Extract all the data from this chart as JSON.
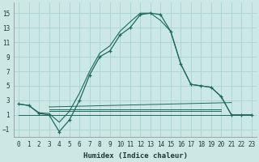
{
  "xlabel": "Humidex (Indice chaleur)",
  "bg_color": "#cce8e4",
  "grid_color": "#aad4ce",
  "line_color": "#1a6b5a",
  "xlim": [
    -0.5,
    23.5
  ],
  "ylim": [
    -2,
    16.5
  ],
  "yticks": [
    -1,
    1,
    3,
    5,
    7,
    9,
    11,
    13,
    15
  ],
  "xticks": [
    0,
    1,
    2,
    3,
    4,
    5,
    6,
    7,
    8,
    9,
    10,
    11,
    12,
    13,
    14,
    15,
    16,
    17,
    18,
    19,
    20,
    21,
    22,
    23
  ],
  "curve1_x": [
    0,
    1,
    2,
    3,
    4,
    5,
    6,
    7,
    8,
    9,
    10,
    11,
    12,
    13,
    14,
    15,
    16,
    17,
    18,
    19,
    20,
    21,
    22,
    23
  ],
  "curve1_y": [
    2.5,
    2.3,
    1.2,
    1.0,
    -1.3,
    0.3,
    3.0,
    6.5,
    9.0,
    9.8,
    12.0,
    13.0,
    14.8,
    15.0,
    14.8,
    12.5,
    8.0,
    5.2,
    5.0,
    4.8,
    3.5,
    1.0,
    1.0,
    1.0
  ],
  "curve2_x": [
    0,
    1,
    2,
    3,
    4,
    5,
    6,
    7,
    8,
    9,
    10,
    11,
    12,
    13,
    14,
    15,
    16,
    17,
    18,
    19,
    20,
    21,
    22,
    23
  ],
  "curve2_y": [
    2.5,
    2.3,
    1.3,
    1.2,
    0.0,
    1.5,
    4.0,
    7.0,
    9.5,
    10.5,
    12.5,
    13.8,
    15.0,
    15.0,
    14.0,
    12.5,
    8.0,
    5.2,
    5.0,
    4.8,
    3.5,
    1.0,
    1.0,
    1.0
  ],
  "flat_lines": [
    {
      "x": [
        0,
        23
      ],
      "y": [
        1.0,
        1.0
      ]
    },
    {
      "x": [
        3,
        20
      ],
      "y": [
        1.5,
        1.5
      ]
    },
    {
      "x": [
        3,
        20
      ],
      "y": [
        1.8,
        1.8
      ]
    },
    {
      "x": [
        3,
        21
      ],
      "y": [
        2.1,
        2.7
      ]
    }
  ]
}
